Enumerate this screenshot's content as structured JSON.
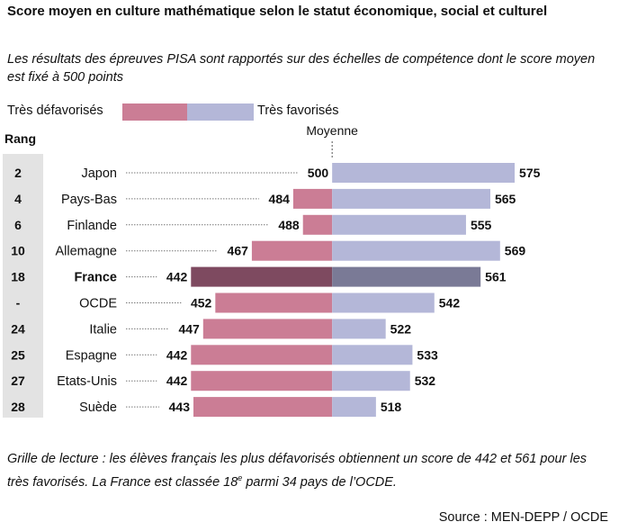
{
  "header": {
    "title": "Score moyen en culture mathématique selon le statut économique, social et culturel",
    "subtitle": "Les résultats des épreuves PISA sont rapportés sur des échelles de compétence dont le score moyen est fixé à 500 points"
  },
  "footer": {
    "reading_before": "Grille de lecture : les élèves français les plus défavorisés obtiennent un score de 442 et 561 pour les très favorisés. La France est classée 18",
    "reading_sup": "e",
    "reading_after": " parmi 34 pays de l’OCDE.",
    "source": "Source : MEN-DEPP / OCDE"
  },
  "colors": {
    "low": "#cb7d95",
    "high": "#b4b7d8",
    "low_highlight": "#7e4a60",
    "high_highlight": "#7a7a96",
    "rank_bg": "#e3e3e3"
  },
  "chart_data": {
    "type": "bar",
    "rank_header": "Rang",
    "legend": {
      "low": "Très défavorisés",
      "high": "Très favorisés"
    },
    "reference_label": "Moyenne",
    "reference_value": 500,
    "xlim": [
      382,
      609
    ],
    "highlight": "France",
    "rows": [
      {
        "rank": "2",
        "country": "Japon",
        "low": 500,
        "high": 575
      },
      {
        "rank": "4",
        "country": "Pays-Bas",
        "low": 484,
        "high": 565
      },
      {
        "rank": "6",
        "country": "Finlande",
        "low": 488,
        "high": 555
      },
      {
        "rank": "10",
        "country": "Allemagne",
        "low": 467,
        "high": 569
      },
      {
        "rank": "18",
        "country": "France",
        "low": 442,
        "high": 561
      },
      {
        "rank": "-",
        "country": "OCDE",
        "low": 452,
        "high": 542
      },
      {
        "rank": "24",
        "country": "Italie",
        "low": 447,
        "high": 522
      },
      {
        "rank": "25",
        "country": "Espagne",
        "low": 442,
        "high": 533
      },
      {
        "rank": "27",
        "country": "Etats-Unis",
        "low": 442,
        "high": 532
      },
      {
        "rank": "28",
        "country": "Suède",
        "low": 443,
        "high": 518
      }
    ]
  }
}
